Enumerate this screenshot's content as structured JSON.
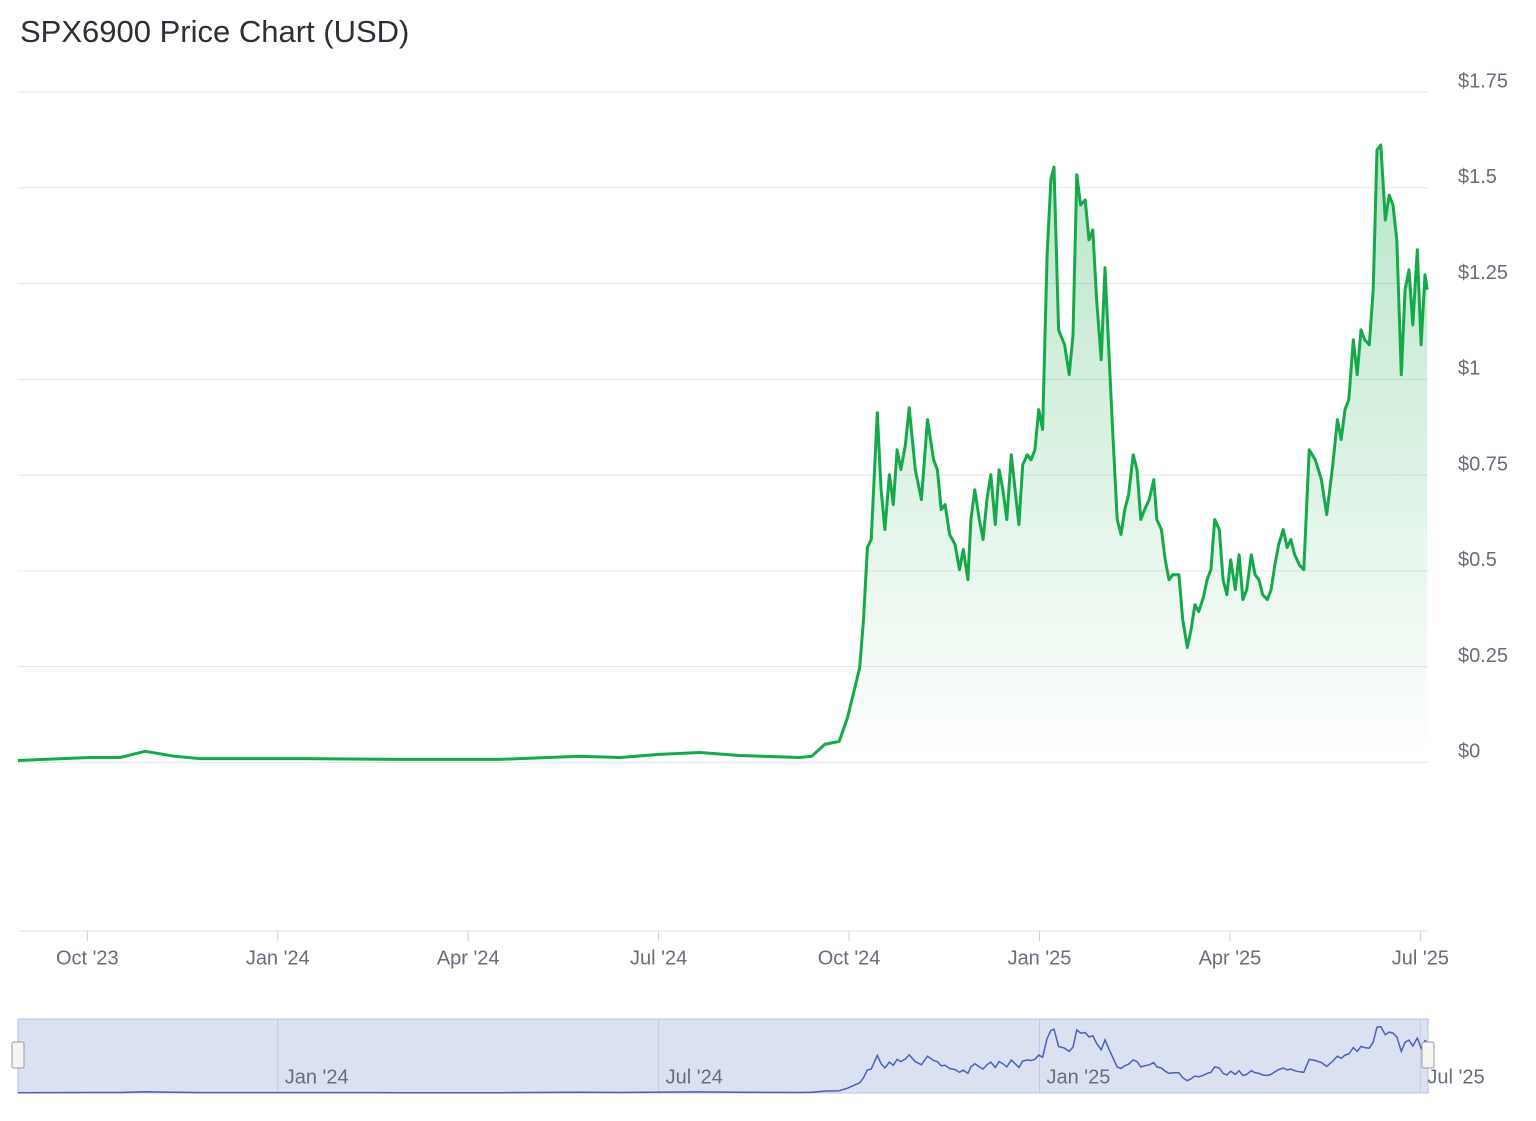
{
  "chart_data": {
    "type": "line",
    "title": "SPX6900 Price Chart (USD)",
    "x": [
      2023.659,
      2023.753,
      2023.793,
      2023.826,
      2023.865,
      2023.898,
      2024.029,
      2024.16,
      2024.291,
      2024.396,
      2024.449,
      2024.501,
      2024.554,
      2024.606,
      2024.685,
      2024.701,
      2024.718,
      2024.737,
      2024.748,
      2024.757,
      2024.764,
      2024.769,
      2024.774,
      2024.779,
      2024.787,
      2024.792,
      2024.797,
      2024.803,
      2024.808,
      2024.813,
      2024.818,
      2024.824,
      2024.829,
      2024.837,
      2024.845,
      2024.853,
      2024.861,
      2024.866,
      2024.871,
      2024.876,
      2024.882,
      2024.889,
      2024.895,
      2024.9,
      2024.906,
      2024.91,
      2024.915,
      2024.921,
      2024.926,
      2024.931,
      2024.936,
      2024.942,
      2024.947,
      2024.952,
      2024.957,
      2024.963,
      2024.968,
      2024.973,
      2024.978,
      2024.984,
      2024.989,
      2024.994,
      2024.999,
      2025.004,
      2025.01,
      2025.015,
      2025.019,
      2025.025,
      2025.033,
      2025.039,
      2025.044,
      2025.049,
      2025.054,
      2025.06,
      2025.065,
      2025.07,
      2025.075,
      2025.081,
      2025.086,
      2025.091,
      2025.096,
      2025.102,
      2025.107,
      2025.112,
      2025.117,
      2025.123,
      2025.128,
      2025.133,
      2025.138,
      2025.144,
      2025.15,
      2025.154,
      2025.16,
      2025.165,
      2025.17,
      2025.175,
      2025.183,
      2025.188,
      2025.194,
      2025.199,
      2025.204,
      2025.209,
      2025.215,
      2025.22,
      2025.225,
      2025.23,
      2025.236,
      2025.241,
      2025.246,
      2025.251,
      2025.257,
      2025.262,
      2025.267,
      2025.272,
      2025.278,
      2025.283,
      2025.288,
      2025.293,
      2025.299,
      2025.304,
      2025.309,
      2025.314,
      2025.32,
      2025.325,
      2025.33,
      2025.335,
      2025.341,
      2025.347,
      2025.354,
      2025.362,
      2025.37,
      2025.377,
      2025.385,
      2025.391,
      2025.396,
      2025.401,
      2025.406,
      2025.412,
      2025.417,
      2025.422,
      2025.427,
      2025.433,
      2025.438,
      2025.443,
      2025.448,
      2025.454,
      2025.459,
      2025.464,
      2025.469,
      2025.475,
      2025.48,
      2025.485,
      2025.49,
      2025.496,
      2025.501,
      2025.506,
      2025.509
    ],
    "values": [
      0.005,
      0.013,
      0.013,
      0.029,
      0.016,
      0.01,
      0.01,
      0.008,
      0.008,
      0.016,
      0.013,
      0.021,
      0.026,
      0.018,
      0.013,
      0.016,
      0.047,
      0.055,
      0.117,
      0.19,
      0.248,
      0.373,
      0.561,
      0.582,
      0.913,
      0.712,
      0.608,
      0.751,
      0.673,
      0.816,
      0.764,
      0.829,
      0.926,
      0.764,
      0.686,
      0.895,
      0.79,
      0.764,
      0.66,
      0.673,
      0.595,
      0.569,
      0.503,
      0.556,
      0.477,
      0.634,
      0.712,
      0.634,
      0.582,
      0.686,
      0.751,
      0.621,
      0.764,
      0.712,
      0.634,
      0.803,
      0.712,
      0.621,
      0.777,
      0.803,
      0.79,
      0.816,
      0.921,
      0.869,
      1.325,
      1.521,
      1.554,
      1.129,
      1.09,
      1.012,
      1.116,
      1.534,
      1.455,
      1.468,
      1.364,
      1.39,
      1.208,
      1.051,
      1.291,
      1.077,
      0.869,
      0.634,
      0.595,
      0.66,
      0.699,
      0.803,
      0.764,
      0.634,
      0.66,
      0.686,
      0.738,
      0.634,
      0.608,
      0.529,
      0.477,
      0.49,
      0.49,
      0.373,
      0.3,
      0.347,
      0.412,
      0.394,
      0.43,
      0.477,
      0.503,
      0.634,
      0.608,
      0.477,
      0.438,
      0.529,
      0.451,
      0.542,
      0.425,
      0.451,
      0.542,
      0.49,
      0.477,
      0.438,
      0.425,
      0.451,
      0.516,
      0.569,
      0.608,
      0.561,
      0.582,
      0.542,
      0.516,
      0.503,
      0.816,
      0.79,
      0.738,
      0.647,
      0.777,
      0.895,
      0.843,
      0.921,
      0.947,
      1.103,
      1.012,
      1.129,
      1.103,
      1.09,
      1.234,
      1.599,
      1.612,
      1.416,
      1.481,
      1.455,
      1.364,
      1.012,
      1.234,
      1.286,
      1.142,
      1.338,
      1.09,
      1.273,
      1.234
    ],
    "color": "#16a94a",
    "xlim": [
      2023.659,
      2025.51
    ],
    "ylim": [
      -0.44,
      1.75
    ],
    "xticks": [
      {
        "value": 2023.75,
        "label": "Oct '23"
      },
      {
        "value": 2024.0,
        "label": "Jan '24"
      },
      {
        "value": 2024.25,
        "label": "Apr '24"
      },
      {
        "value": 2024.5,
        "label": "Jul '24"
      },
      {
        "value": 2024.75,
        "label": "Oct '24"
      },
      {
        "value": 2025.0,
        "label": "Jan '25"
      },
      {
        "value": 2025.25,
        "label": "Apr '25"
      },
      {
        "value": 2025.5,
        "label": "Jul '25"
      }
    ],
    "yticks": [
      {
        "value": 0,
        "label": "$0"
      },
      {
        "value": 0.25,
        "label": "$0.25"
      },
      {
        "value": 0.5,
        "label": "$0.5"
      },
      {
        "value": 0.75,
        "label": "$0.75"
      },
      {
        "value": 1,
        "label": "$1"
      },
      {
        "value": 1.25,
        "label": "$1.25"
      },
      {
        "value": 1.5,
        "label": "$1.5"
      },
      {
        "value": 1.75,
        "label": "$1.75"
      }
    ],
    "grid": true,
    "navigator": {
      "color": "#4a5fc1",
      "xticks": [
        {
          "value": 2024.0,
          "label": "Jan '24"
        },
        {
          "value": 2024.5,
          "label": "Jul '24"
        },
        {
          "value": 2025.0,
          "label": "Jan '25"
        },
        {
          "value": 2025.5,
          "label": "Jul '25"
        }
      ]
    }
  }
}
